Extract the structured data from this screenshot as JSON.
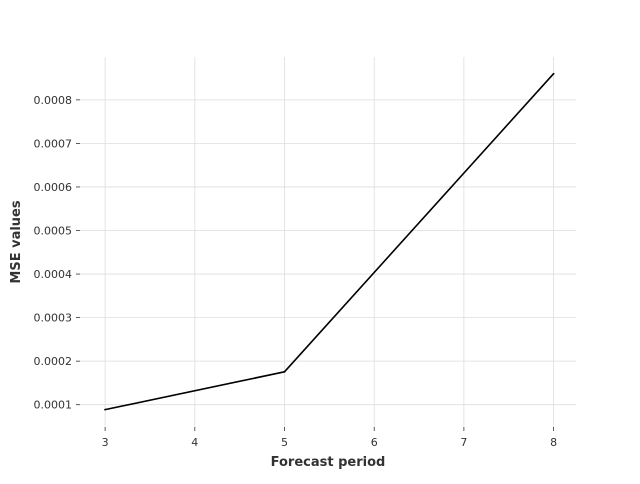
{
  "chart_data": {
    "type": "line",
    "title": "",
    "xlabel": "Forecast period",
    "ylabel": "MSE values",
    "x_ticks": [
      "3",
      "4",
      "5",
      "6",
      "7",
      "8"
    ],
    "y_ticks": [
      "0.0001",
      "0.0002",
      "0.0003",
      "0.0004",
      "0.0005",
      "0.0006",
      "0.0007",
      "0.0008"
    ],
    "xlim": [
      2.72,
      8.25
    ],
    "ylim": [
      4.88e-05,
      0.0008984
    ],
    "grid": true,
    "legend": "none",
    "series": [
      {
        "color": "#000000",
        "points": [
          {
            "x": 3,
            "y": 8.87e-05
          },
          {
            "x": 5,
            "y": 0.0001755
          },
          {
            "x": 8,
            "y": 0.00086
          }
        ]
      }
    ]
  }
}
